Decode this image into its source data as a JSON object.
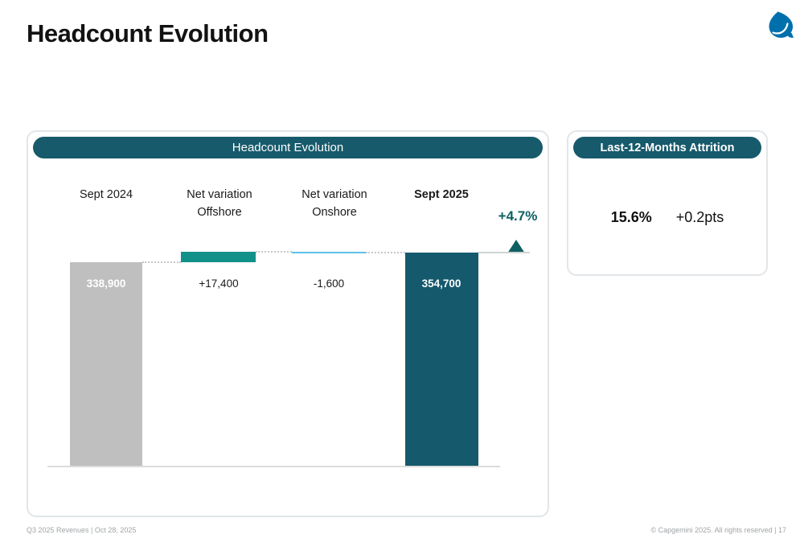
{
  "slide": {
    "title": "Headcount Evolution"
  },
  "chart_panel": {
    "header": "Headcount Evolution"
  },
  "chart_data": {
    "type": "waterfall",
    "title": "Headcount Evolution",
    "categories": [
      "Sept 2024",
      "Net variation\nOffshore",
      "Net variation\nOnshore",
      "Sept 2025"
    ],
    "values": [
      338900,
      17400,
      -1600,
      354700
    ],
    "bar_labels": [
      "338,900",
      "+17,400",
      "-1,600",
      "354,700"
    ],
    "bar_roles": [
      "start-total",
      "increase",
      "decrease",
      "end-total"
    ],
    "bar_colors": [
      "#BFBFBF",
      "#12918A",
      "#5BC2E7",
      "#15596C"
    ],
    "growth_label": "+4.7%",
    "growth_percent": 4.7,
    "legend": "none",
    "grid": "off"
  },
  "attrition_panel": {
    "header": "Last-12-Months Attrition",
    "rate": "15.6%",
    "delta": "+0.2pts"
  },
  "footer": {
    "left": "Q3 2025 Revenues  |  Oct 28, 2025",
    "right": "© Capgemini 2025. All rights reserved  |  17"
  },
  "colors": {
    "brand_blue": "#0070AD",
    "header_pill_teal": "#175A6B",
    "bar_gray": "#BFBFBF",
    "bar_teal": "#12918A",
    "bar_lightblue": "#5BC2E7",
    "bar_darkteal": "#15596C",
    "growth_teal": "#0E6062"
  }
}
